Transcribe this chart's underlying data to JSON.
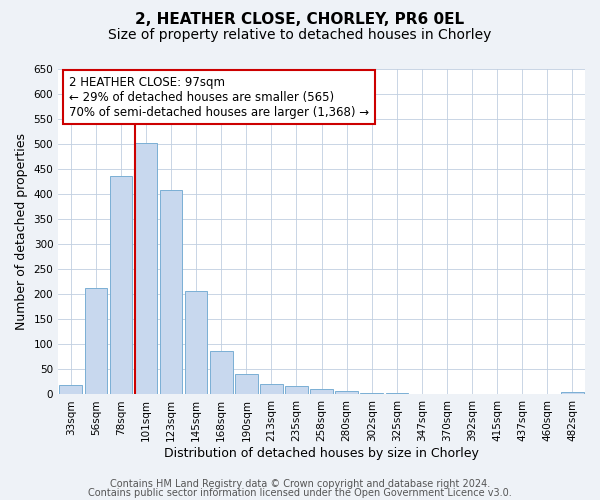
{
  "title": "2, HEATHER CLOSE, CHORLEY, PR6 0EL",
  "subtitle": "Size of property relative to detached houses in Chorley",
  "xlabel": "Distribution of detached houses by size in Chorley",
  "ylabel": "Number of detached properties",
  "categories": [
    "33sqm",
    "56sqm",
    "78sqm",
    "101sqm",
    "123sqm",
    "145sqm",
    "168sqm",
    "190sqm",
    "213sqm",
    "235sqm",
    "258sqm",
    "280sqm",
    "302sqm",
    "325sqm",
    "347sqm",
    "370sqm",
    "392sqm",
    "415sqm",
    "437sqm",
    "460sqm",
    "482sqm"
  ],
  "values": [
    18,
    213,
    437,
    502,
    408,
    207,
    87,
    40,
    20,
    17,
    11,
    6,
    2,
    2,
    0,
    0,
    0,
    0,
    0,
    0,
    5
  ],
  "bar_color": "#c8d8ee",
  "bar_edge_color": "#7aafd4",
  "vline_index": 3,
  "vline_color": "#cc0000",
  "annotation_line1": "2 HEATHER CLOSE: 97sqm",
  "annotation_line2": "← 29% of detached houses are smaller (565)",
  "annotation_line3": "70% of semi-detached houses are larger (1,368) →",
  "annotation_box_facecolor": "#ffffff",
  "annotation_box_edgecolor": "#cc0000",
  "ylim": [
    0,
    650
  ],
  "yticks": [
    0,
    50,
    100,
    150,
    200,
    250,
    300,
    350,
    400,
    450,
    500,
    550,
    600,
    650
  ],
  "footer_line1": "Contains HM Land Registry data © Crown copyright and database right 2024.",
  "footer_line2": "Contains public sector information licensed under the Open Government Licence v3.0.",
  "background_color": "#eef2f7",
  "plot_background_color": "#ffffff",
  "grid_color": "#c0cfe0",
  "title_fontsize": 11,
  "subtitle_fontsize": 10,
  "axis_label_fontsize": 9,
  "tick_fontsize": 7.5,
  "annotation_fontsize": 8.5,
  "footer_fontsize": 7
}
